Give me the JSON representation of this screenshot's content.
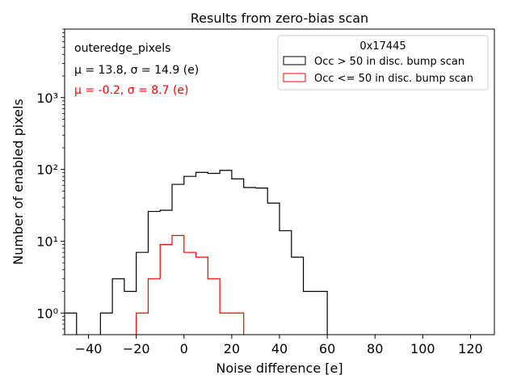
{
  "chart_data": {
    "type": "histogram",
    "title": "Results from zero-bias scan",
    "xlabel": "Noise difference [e]",
    "ylabel": "Number of enabled pixels",
    "xlim": [
      -50,
      130
    ],
    "ylim": [
      0.5,
      9000
    ],
    "yscale": "log",
    "grid": false,
    "legend_position": "top-right",
    "x_ticks": [
      -40,
      -20,
      0,
      20,
      40,
      60,
      80,
      100,
      120
    ],
    "x_tick_labels": [
      "−40",
      "−20",
      "0",
      "20",
      "40",
      "60",
      "80",
      "100",
      "120"
    ],
    "y_ticks": [
      1,
      10,
      100,
      1000
    ],
    "y_tick_labels": [
      "10⁰",
      "10¹",
      "10²",
      "10³"
    ],
    "legend_title": "0x17445",
    "annotations": {
      "name": "outeredge_pixels",
      "stats_black": "μ = 13.8, σ = 14.9 (e)",
      "stats_red": "μ = -0.2, σ = 8.7 (e)"
    },
    "series": [
      {
        "name": "Occ > 50 in disc. bump scan",
        "color": "#000000",
        "bin_edges": [
          -50,
          -45,
          -40,
          -35,
          -30,
          -25,
          -20,
          -15,
          -10,
          -5,
          0,
          5,
          10,
          15,
          20,
          25,
          30,
          35,
          40,
          45,
          50,
          55,
          60
        ],
        "counts": [
          1,
          0,
          0,
          1,
          3,
          2,
          7,
          26,
          27,
          62,
          80,
          91,
          88,
          97,
          74,
          56,
          55,
          34,
          14,
          6,
          2,
          2
        ]
      },
      {
        "name": "Occ <= 50 in disc. bump scan",
        "color": "#ff0000",
        "bin_edges": [
          -20,
          -15,
          -10,
          -5,
          0,
          5,
          10,
          15,
          20,
          25
        ],
        "counts": [
          1,
          3,
          9,
          12,
          7,
          6,
          3,
          1,
          1
        ]
      }
    ]
  }
}
